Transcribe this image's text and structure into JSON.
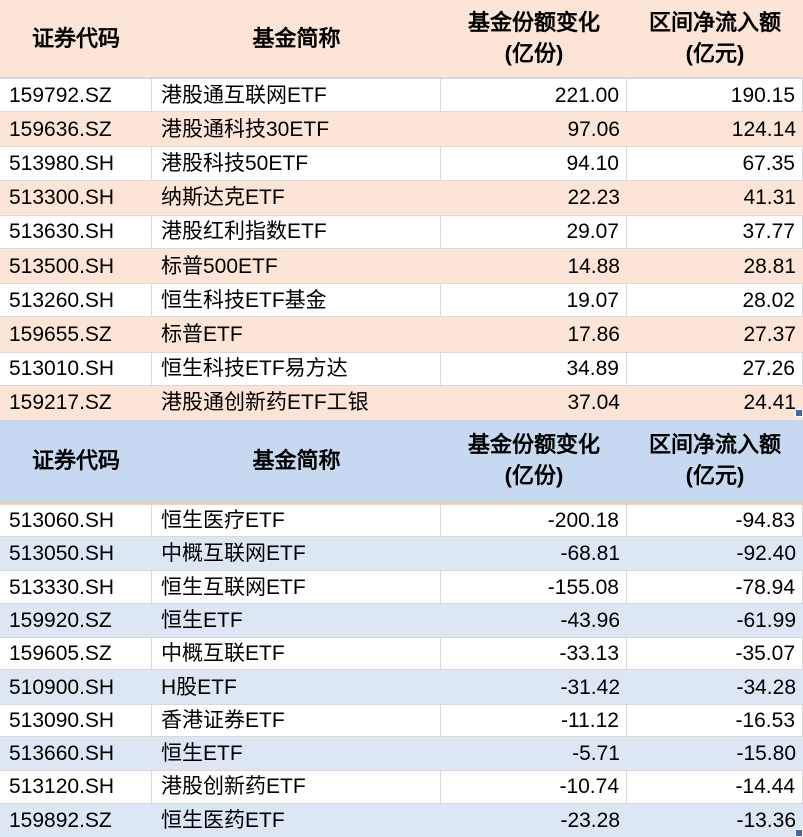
{
  "colors": {
    "inflow_header_bg": "#FCE4D6",
    "inflow_row_bg": "#FCE4D6",
    "outflow_header_bg": "#C6D9F0",
    "outflow_row_bg": "#DDE7F3",
    "gridline": "#D9D9D9",
    "outflow_header_underline": "#F3C9A6",
    "fill_handle": "#4067B1",
    "text": "#000000"
  },
  "headers": {
    "code": "证券代码",
    "name": "基金简称",
    "share_change_line1": "基金份额变化",
    "share_change_line2": "(亿份)",
    "net_flow_line1": "区间净流入额",
    "net_flow_line2": "(亿元)"
  },
  "inflow_table": {
    "rows": [
      {
        "code": "159792.SZ",
        "name": "港股通互联网ETF",
        "share_change": "221.00",
        "net_flow": "190.15"
      },
      {
        "code": "159636.SZ",
        "name": "港股通科技30ETF",
        "share_change": "97.06",
        "net_flow": "124.14"
      },
      {
        "code": "513980.SH",
        "name": "港股科技50ETF",
        "share_change": "94.10",
        "net_flow": "67.35"
      },
      {
        "code": "513300.SH",
        "name": "纳斯达克ETF",
        "share_change": "22.23",
        "net_flow": "41.31"
      },
      {
        "code": "513630.SH",
        "name": "港股红利指数ETF",
        "share_change": "29.07",
        "net_flow": "37.77"
      },
      {
        "code": "513500.SH",
        "name": "标普500ETF",
        "share_change": "14.88",
        "net_flow": "28.81"
      },
      {
        "code": "513260.SH",
        "name": "恒生科技ETF基金",
        "share_change": "19.07",
        "net_flow": "28.02"
      },
      {
        "code": "159655.SZ",
        "name": "标普ETF",
        "share_change": "17.86",
        "net_flow": "27.37"
      },
      {
        "code": "513010.SH",
        "name": "恒生科技ETF易方达",
        "share_change": "34.89",
        "net_flow": "27.26"
      },
      {
        "code": "159217.SZ",
        "name": "港股通创新药ETF工银",
        "share_change": "37.04",
        "net_flow": "24.41"
      }
    ]
  },
  "outflow_table": {
    "rows": [
      {
        "code": "513060.SH",
        "name": "恒生医疗ETF",
        "share_change": "-200.18",
        "net_flow": "-94.83"
      },
      {
        "code": "513050.SH",
        "name": "中概互联网ETF",
        "share_change": "-68.81",
        "net_flow": "-92.40"
      },
      {
        "code": "513330.SH",
        "name": "恒生互联网ETF",
        "share_change": "-155.08",
        "net_flow": "-78.94"
      },
      {
        "code": "159920.SZ",
        "name": "恒生ETF",
        "share_change": "-43.96",
        "net_flow": "-61.99"
      },
      {
        "code": "159605.SZ",
        "name": "中概互联ETF",
        "share_change": "-33.13",
        "net_flow": "-35.07"
      },
      {
        "code": "510900.SH",
        "name": "H股ETF",
        "share_change": "-31.42",
        "net_flow": "-34.28"
      },
      {
        "code": "513090.SH",
        "name": "香港证券ETF",
        "share_change": "-11.12",
        "net_flow": "-16.53"
      },
      {
        "code": "513660.SH",
        "name": "恒生ETF",
        "share_change": "-5.71",
        "net_flow": "-15.80"
      },
      {
        "code": "513120.SH",
        "name": "港股创新药ETF",
        "share_change": "-10.74",
        "net_flow": "-14.44"
      },
      {
        "code": "159892.SZ",
        "name": "恒生医药ETF",
        "share_change": "-23.28",
        "net_flow": "-13.36"
      }
    ]
  }
}
